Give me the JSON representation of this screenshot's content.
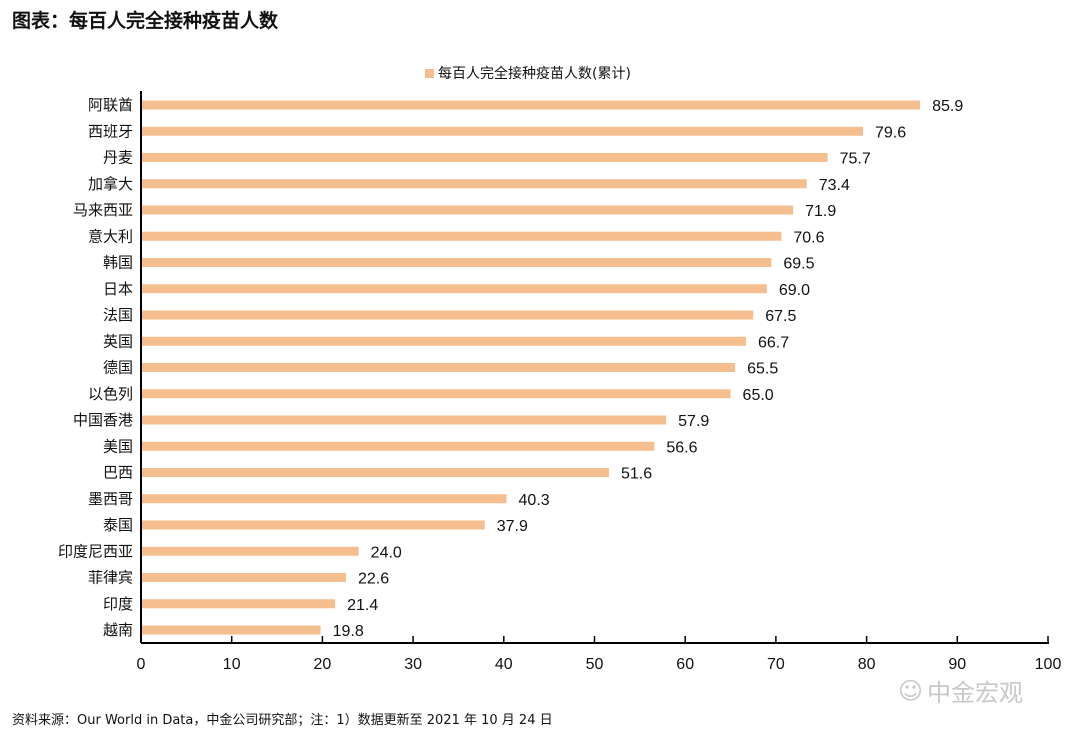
{
  "title": "图表：每百人完全接种疫苗人数",
  "source": "资料来源：Our World in Data，中金公司研究部；注：1）数据更新至 2021 年 10 月 24 日",
  "watermark": "中金宏观",
  "chart_data": {
    "type": "bar",
    "orientation": "horizontal",
    "title": "图表：每百人完全接种疫苗人数",
    "legend": "top",
    "grid": false,
    "series": [
      {
        "name": "每百人完全接种疫苗人数(累计)",
        "color": "#F5BE8E",
        "values": [
          85.9,
          79.6,
          75.7,
          73.4,
          71.9,
          70.6,
          69.5,
          69.0,
          67.5,
          66.7,
          65.5,
          65.0,
          57.9,
          56.6,
          51.6,
          40.3,
          37.9,
          24.0,
          22.6,
          21.4,
          19.8
        ]
      }
    ],
    "categories": [
      "阿联酋",
      "西班牙",
      "丹麦",
      "加拿大",
      "马来西亚",
      "意大利",
      "韩国",
      "日本",
      "法国",
      "英国",
      "德国",
      "以色列",
      "中国香港",
      "美国",
      "巴西",
      "墨西哥",
      "泰国",
      "印度尼西亚",
      "菲律宾",
      "印度",
      "越南"
    ],
    "xlim": [
      0,
      100
    ],
    "xticks": [
      0,
      10,
      20,
      30,
      40,
      50,
      60,
      70,
      80,
      90,
      100
    ],
    "xlabel": "",
    "ylabel": ""
  }
}
